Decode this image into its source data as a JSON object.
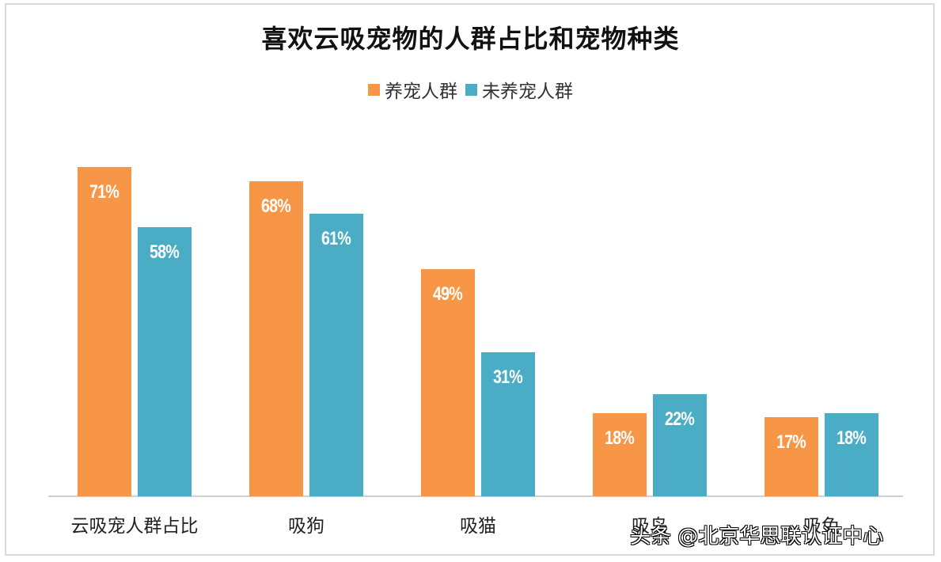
{
  "chart_data": {
    "type": "bar",
    "title": "喜欢云吸宠物的人群占比和宠物种类",
    "categories": [
      "云吸宠人群占比",
      "吸狗",
      "吸猫",
      "吸鸟",
      "吸兔"
    ],
    "series": [
      {
        "name": "养宠人群",
        "color": "#F79646",
        "values": [
          71,
          68,
          49,
          18,
          17
        ],
        "labels": [
          "71%",
          "68%",
          "49%",
          "18%",
          "17%"
        ]
      },
      {
        "name": "未养宠人群",
        "color": "#4BACC6",
        "values": [
          58,
          61,
          31,
          22,
          18
        ],
        "labels": [
          "58%",
          "61%",
          "31%",
          "22%",
          "18%"
        ]
      }
    ],
    "xlabel": "",
    "ylabel": "",
    "ylim": [
      0,
      80
    ],
    "unit": "%",
    "grid": false,
    "legend_position": "top"
  },
  "watermark": "头条 @北京华思联认证中心"
}
